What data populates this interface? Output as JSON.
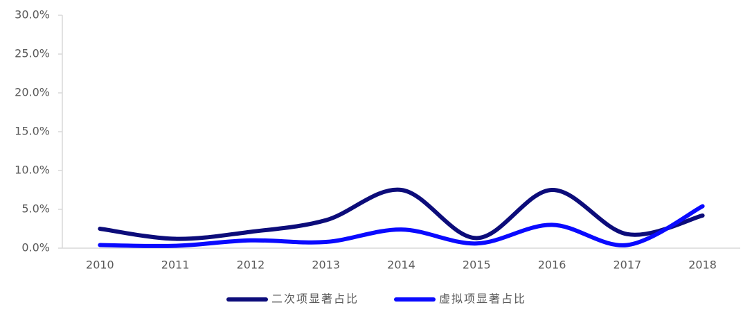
{
  "chart_data": {
    "type": "line",
    "categories": [
      "2010",
      "2011",
      "2012",
      "2013",
      "2014",
      "2015",
      "2016",
      "2017",
      "2018"
    ],
    "series": [
      {
        "name": "二次项显著占比",
        "color": "#0c0c7a",
        "values": [
          2.5,
          1.2,
          2.1,
          3.6,
          7.5,
          1.3,
          7.5,
          1.8,
          4.2
        ]
      },
      {
        "name": "虚拟项显著占比",
        "color": "#0a0aff",
        "values": [
          0.4,
          0.3,
          1.0,
          0.8,
          2.4,
          0.6,
          3.0,
          0.4,
          5.4
        ]
      }
    ],
    "ylim": [
      0,
      30
    ],
    "yticks": [
      {
        "value": 0,
        "label": "0.0%"
      },
      {
        "value": 5,
        "label": "5.0%"
      },
      {
        "value": 10,
        "label": "10.0%"
      },
      {
        "value": 15,
        "label": "15.0%"
      },
      {
        "value": 20,
        "label": "20.0%"
      },
      {
        "value": 25,
        "label": "25.0%"
      },
      {
        "value": 30,
        "label": "30.0%"
      }
    ],
    "smooth": true,
    "grid": false,
    "legend": "bottom"
  }
}
